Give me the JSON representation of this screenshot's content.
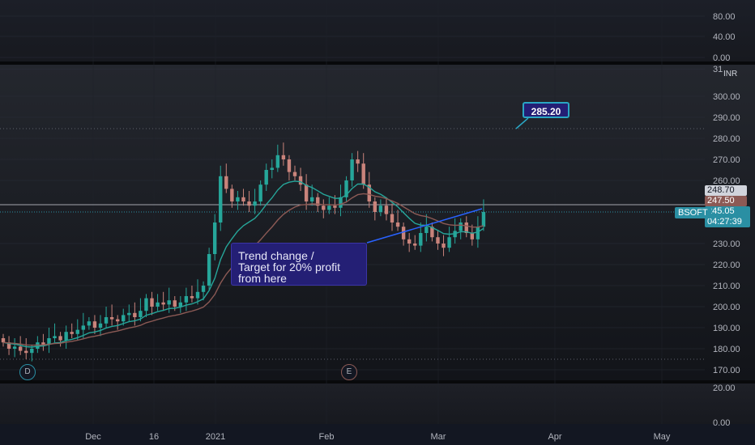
{
  "symbol": "BSOFT",
  "currency": "INR",
  "price_axis": {
    "top_pane_ticks": [
      "80.00",
      "40.00",
      "0.00"
    ],
    "main_ticks": [
      "31",
      "300.00",
      "290.00",
      "280.00",
      "270.00",
      "260.00",
      "230.00",
      "220.00",
      "210.00",
      "200.00",
      "190.00",
      "180.00",
      "170.00"
    ],
    "bottom_pane_ticks": [
      "20.00",
      "0.00"
    ]
  },
  "time_axis": [
    "Dec",
    "16",
    "2021",
    "Feb",
    "Mar",
    "Apr",
    "May"
  ],
  "price_tags": {
    "last_close_high": "248.70",
    "ema_value": "247.50",
    "current_price": "245.05",
    "countdown": "04:27:39"
  },
  "annotations": {
    "target_label": "285.20",
    "callout_lines": [
      "Trend change /",
      "Target for 20% profit",
      "from here"
    ]
  },
  "events": {
    "dividend": "D",
    "earnings": "E"
  },
  "colors": {
    "up_candle": "#26a69a",
    "down_candle": "#c9837b",
    "ema_fast": "#26a69a",
    "ema_slow": "#8c5a55",
    "trendline": "#2962ff",
    "callout_bg": "#241f75",
    "target_border": "#2aa6c4"
  },
  "chart_data": {
    "type": "candlestick",
    "ylim": [
      168,
      314
    ],
    "x_labels": [
      "Dec",
      "16",
      "2021",
      "Feb",
      "Mar",
      "Apr",
      "May"
    ],
    "closes": [
      183,
      180,
      181,
      179,
      178,
      180,
      183,
      182,
      185,
      186,
      184,
      188,
      187,
      189,
      191,
      193,
      190,
      192,
      195,
      194,
      193,
      196,
      197,
      195,
      198,
      204,
      200,
      202,
      201,
      203,
      200,
      202,
      205,
      204,
      207,
      210,
      225,
      240,
      262,
      256,
      250,
      252,
      250,
      248,
      250,
      258,
      265,
      266,
      272,
      270,
      264,
      262,
      258,
      250,
      252,
      248,
      246,
      248,
      247,
      252,
      260,
      270,
      268,
      258,
      250,
      245,
      248,
      244,
      240,
      238,
      232,
      230,
      229,
      235,
      238,
      233,
      230,
      228,
      233,
      236,
      240,
      235,
      232,
      238,
      245
    ]
  }
}
